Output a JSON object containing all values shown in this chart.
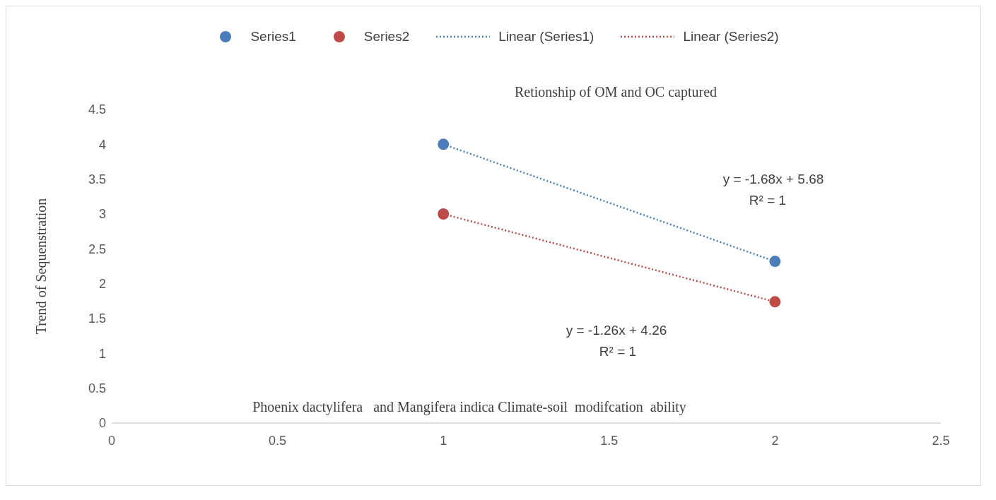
{
  "chart_data": {
    "type": "scatter",
    "title": "Retionship of OM and OC captured",
    "ylabel": "Trend of Sequenstration",
    "x": [
      1,
      2
    ],
    "xlim": [
      0,
      2.5
    ],
    "xticks": [
      0,
      0.5,
      1,
      1.5,
      2,
      2.5
    ],
    "ylim": [
      0,
      4.5
    ],
    "yticks": [
      0,
      0.5,
      1,
      1.5,
      2,
      2.5,
      3,
      3.5,
      4,
      4.5
    ],
    "grid": false,
    "legend": "top",
    "marker": "circle",
    "series": [
      {
        "name": "Series1",
        "color": "#4a7ebb",
        "values": [
          4,
          2.32
        ]
      },
      {
        "name": "Series2",
        "color": "#be4b48",
        "values": [
          3,
          1.74
        ]
      },
      {
        "name": "Linear (Series1)",
        "type": "line",
        "color": "#4a7ebb",
        "values": [
          4,
          2.32
        ],
        "line_style": "dotted",
        "marker": "none"
      },
      {
        "name": "Linear (Series2)",
        "type": "line",
        "color": "#be4b48",
        "values": [
          3,
          1.74
        ],
        "line_style": "dotted",
        "marker": "none"
      }
    ],
    "annotations": [
      "y = -1.68x + 5.68",
      "R² = 1",
      "y = -1.26x + 4.26",
      "R² = 1",
      "Phoenix dactylifera   and Mangifera indica Climate-soil  modifcation  ability"
    ]
  }
}
